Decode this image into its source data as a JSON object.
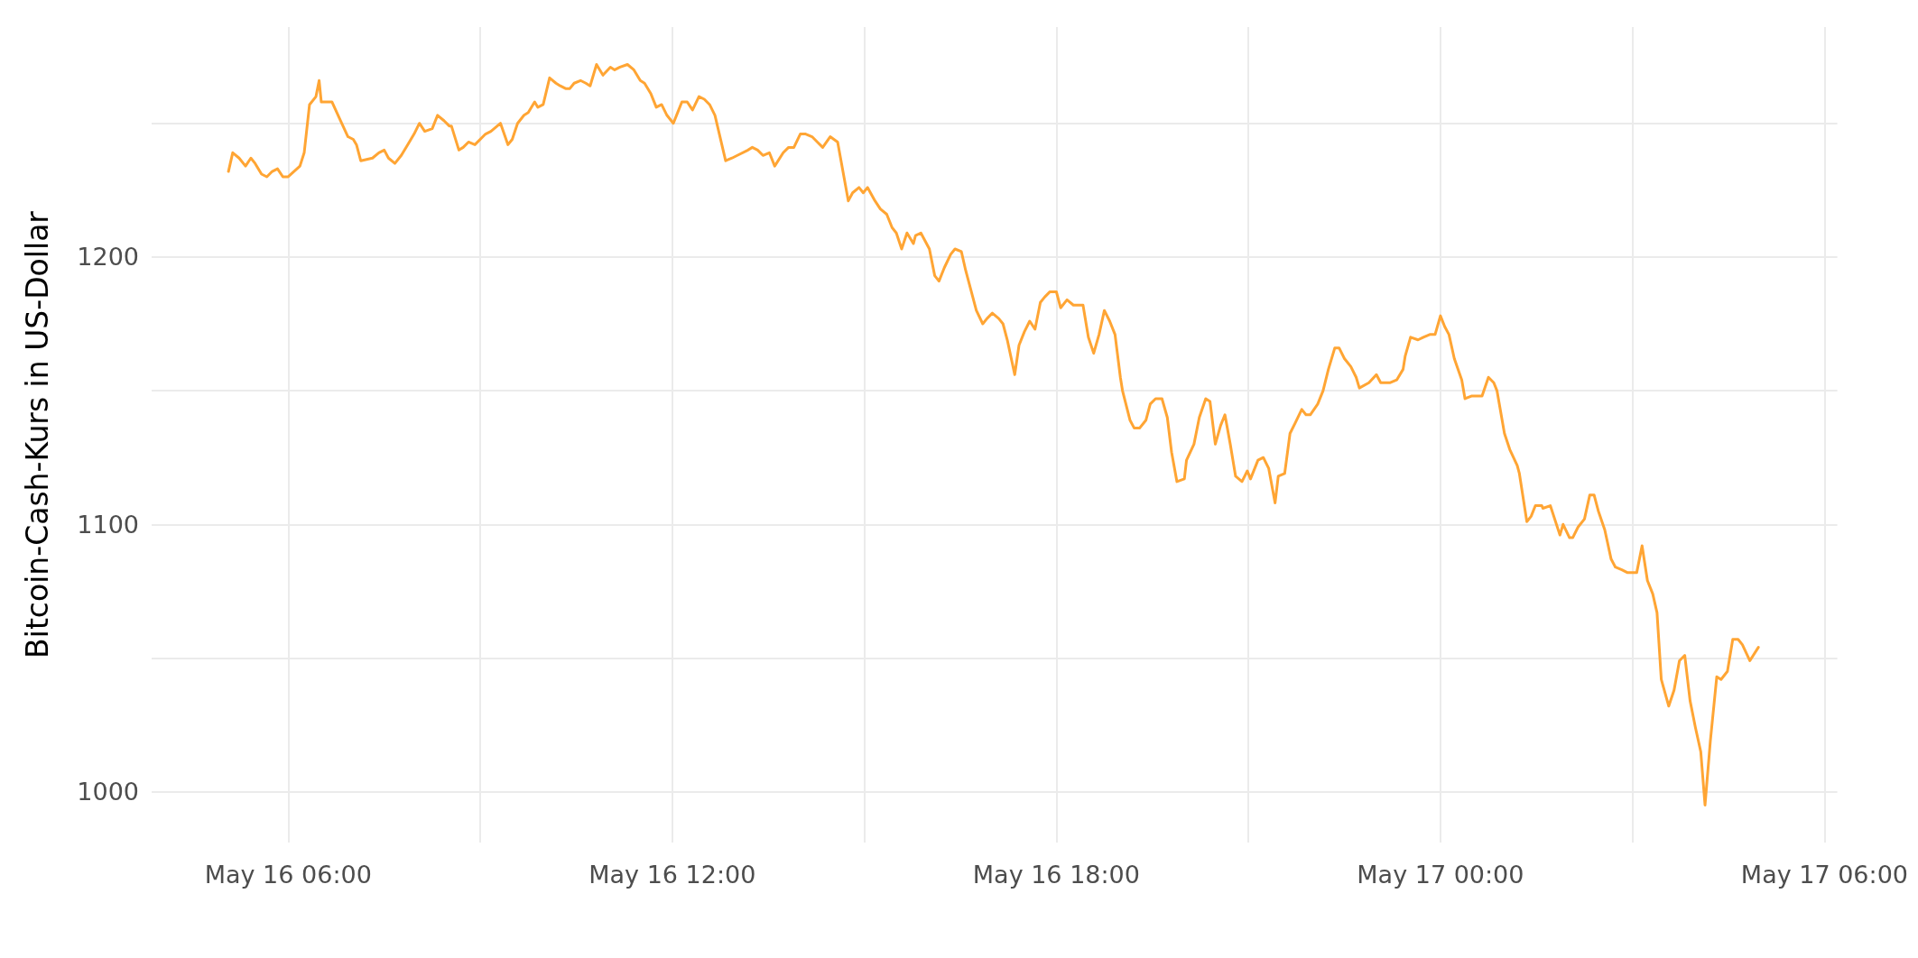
{
  "chart_data": {
    "type": "line",
    "ylabel": "Bitcoin-Cash-Kurs in US-Dollar",
    "xlim": [
      "--05-16T03:52",
      "--05-17T06:12"
    ],
    "ylim": [
      981,
      1286
    ],
    "xticks": [
      {
        "value": "--05-16T06:00",
        "label": "May 16 06:00"
      },
      {
        "value": "--05-16T09:00",
        "label": null
      },
      {
        "value": "--05-16T12:00",
        "label": "May 16 12:00"
      },
      {
        "value": "--05-16T15:00",
        "label": null
      },
      {
        "value": "--05-16T18:00",
        "label": "May 16 18:00"
      },
      {
        "value": "--05-16T21:00",
        "label": null
      },
      {
        "value": "--05-17T00:00",
        "label": "May 17 00:00"
      },
      {
        "value": "--05-17T03:00",
        "label": null
      },
      {
        "value": "--05-17T06:00",
        "label": "May 17 06:00"
      }
    ],
    "yticks": [
      1000,
      {
        "value": 1050,
        "label": null
      },
      1100,
      {
        "value": 1150,
        "label": null
      },
      1200,
      {
        "value": 1250,
        "label": null
      }
    ],
    "grid": true,
    "marker": "none",
    "line_style": "solid",
    "series": [
      {
        "color": "#ffa534",
        "x": [
          "--05-16T05:04",
          "--05-16T05:08",
          "--05-16T05:14",
          "--05-16T05:20",
          "--05-16T05:25",
          "--05-16T05:29",
          "--05-16T05:35",
          "--05-16T05:40",
          "--05-16T05:45",
          "--05-16T05:50",
          "--05-16T05:55",
          "--05-16T06:00",
          "--05-16T06:11",
          "--05-16T06:15",
          "--05-16T06:20",
          "--05-16T06:26",
          "--05-16T06:29",
          "--05-16T06:31",
          "--05-16T06:41",
          "--05-16T06:49",
          "--05-16T06:56",
          "--05-16T07:01",
          "--05-16T07:04",
          "--05-16T07:08",
          "--05-16T07:19",
          "--05-16T07:25",
          "--05-16T07:30",
          "--05-16T07:34",
          "--05-16T07:40",
          "--05-16T07:46",
          "--05-16T07:52",
          "--05-16T07:58",
          "--05-16T08:03",
          "--05-16T08:08",
          "--05-16T08:15",
          "--05-16T08:20",
          "--05-16T08:26",
          "--05-16T08:31",
          "--05-16T08:33",
          "--05-16T08:40",
          "--05-16T08:44",
          "--05-16T08:49",
          "--05-16T08:55",
          "--05-16T09:05",
          "--05-16T09:10",
          "--05-16T09:13",
          "--05-16T09:19",
          "--05-16T09:26",
          "--05-16T09:30",
          "--05-16T09:35",
          "--05-16T09:41",
          "--05-16T09:45",
          "--05-16T09:51",
          "--05-16T09:54",
          "--05-16T09:59",
          "--05-16T10:05",
          "--05-16T10:11",
          "--05-16T10:15",
          "--05-16T10:20",
          "--05-16T10:24",
          "--05-16T10:28",
          "--05-16T10:34",
          "--05-16T10:39",
          "--05-16T10:43",
          "--05-16T10:49",
          "--05-16T10:55",
          "--05-16T11:02",
          "--05-16T11:06",
          "--05-16T11:11",
          "--05-16T11:18",
          "--05-16T11:24",
          "--05-16T11:30",
          "--05-16T11:34",
          "--05-16T11:40",
          "--05-16T11:45",
          "--05-16T11:50",
          "--05-16T11:55",
          "--05-16T12:01",
          "--05-16T12:05",
          "--05-16T12:09",
          "--05-16T12:14",
          "--05-16T12:19",
          "--05-16T12:25",
          "--05-16T12:30",
          "--05-16T12:35",
          "--05-16T12:40",
          "--05-16T12:50",
          "--05-16T12:56",
          "--05-16T13:01",
          "--05-16T13:11",
          "--05-16T13:15",
          "--05-16T13:20",
          "--05-16T13:25",
          "--05-16T13:31",
          "--05-16T13:36",
          "--05-16T13:44",
          "--05-16T13:49",
          "--05-16T13:54",
          "--05-16T14:00",
          "--05-16T14:05",
          "--05-16T14:11",
          "--05-16T14:16",
          "--05-16T14:21",
          "--05-16T14:28",
          "--05-16T14:35",
          "--05-16T14:45",
          "--05-16T14:49",
          "--05-16T14:55",
          "--05-16T14:59",
          "--05-16T15:03",
          "--05-16T15:10",
          "--05-16T15:15",
          "--05-16T15:21",
          "--05-16T15:26",
          "--05-16T15:30",
          "--05-16T15:35",
          "--05-16T15:40",
          "--05-16T15:46",
          "--05-16T15:48",
          "--05-16T15:53",
          "--05-16T16:01",
          "--05-16T16:06",
          "--05-16T16:10",
          "--05-16T16:15",
          "--05-16T16:21",
          "--05-16T16:25",
          "--05-16T16:31",
          "--05-16T16:35",
          "--05-16T16:45",
          "--05-16T16:51",
          "--05-16T16:55",
          "--05-16T17:00",
          "--05-16T17:06",
          "--05-16T17:10",
          "--05-16T17:14",
          "--05-16T17:21",
          "--05-16T17:25",
          "--05-16T17:30",
          "--05-16T17:35",
          "--05-16T17:40",
          "--05-16T17:45",
          "--05-16T17:49",
          "--05-16T17:54",
          "--05-16T18:00",
          "--05-16T18:04",
          "--05-16T18:10",
          "--05-16T18:16",
          "--05-16T18:21",
          "--05-16T18:25",
          "--05-16T18:30",
          "--05-16T18:35",
          "--05-16T18:40",
          "--05-16T18:45",
          "--05-16T18:50",
          "--05-16T18:55",
          "--05-16T19:00",
          "--05-16T19:02",
          "--05-16T19:09",
          "--05-16T19:13",
          "--05-16T19:18",
          "--05-16T19:24",
          "--05-16T19:28",
          "--05-16T19:33",
          "--05-16T19:39",
          "--05-16T19:44",
          "--05-16T19:48",
          "--05-16T19:53",
          "--05-16T20:00",
          "--05-16T20:02",
          "--05-16T20:09",
          "--05-16T20:14",
          "--05-16T20:20",
          "--05-16T20:24",
          "--05-16T20:29",
          "--05-16T20:34",
          "--05-16T20:38",
          "--05-16T20:43",
          "--05-16T20:48",
          "--05-16T20:54",
          "--05-16T20:59",
          "--05-16T21:02",
          "--05-16T21:09",
          "--05-16T21:14",
          "--05-16T21:19",
          "--05-16T21:25",
          "--05-16T21:28",
          "--05-16T21:34",
          "--05-16T21:39",
          "--05-16T21:44",
          "--05-16T21:50",
          "--05-16T21:54",
          "--05-16T21:58",
          "--05-16T22:05",
          "--05-16T22:10",
          "--05-16T22:15",
          "--05-16T22:21",
          "--05-16T22:25",
          "--05-16T22:30",
          "--05-16T22:36",
          "--05-16T22:41",
          "--05-16T22:44",
          "--05-16T22:53",
          "--05-16T23:00",
          "--05-16T23:04",
          "--05-16T23:13",
          "--05-16T23:19",
          "--05-16T23:25",
          "--05-16T23:27",
          "--05-16T23:32",
          "--05-16T23:39",
          "--05-16T23:44",
          "--05-16T23:50",
          "--05-16T23:55",
          "--05-17T00:00",
          "--05-17T00:04",
          "--05-17T00:08",
          "--05-17T00:13",
          "--05-17T00:20",
          "--05-17T00:23",
          "--05-17T00:29",
          "--05-17T00:39",
          "--05-17T00:45",
          "--05-17T00:50",
          "--05-17T00:53",
          "--05-17T01:00",
          "--05-17T01:05",
          "--05-17T01:12",
          "--05-17T01:14",
          "--05-17T01:21",
          "--05-17T01:25",
          "--05-17T01:29",
          "--05-17T01:35",
          "--05-17T01:36",
          "--05-17T01:43",
          "--05-17T01:52",
          "--05-17T01:55",
          "--05-17T02:01",
          "--05-17T02:04",
          "--05-17T02:09",
          "--05-17T02:15",
          "--05-17T02:20",
          "--05-17T02:24",
          "--05-17T02:28",
          "--05-17T02:34",
          "--05-17T02:40",
          "--05-17T02:44",
          "--05-17T02:50",
          "--05-17T02:55",
          "--05-17T03:04",
          "--05-17T03:09",
          "--05-17T03:14",
          "--05-17T03:19",
          "--05-17T03:23",
          "--05-17T03:27",
          "--05-17T03:34",
          "--05-17T03:39",
          "--05-17T03:44",
          "--05-17T03:49",
          "--05-17T03:54",
          "--05-17T03:59",
          "--05-17T04:04",
          "--05-17T04:08",
          "--05-17T04:13",
          "--05-17T04:19",
          "--05-17T04:23",
          "--05-17T04:29",
          "--05-17T04:34",
          "--05-17T04:39",
          "--05-17T04:43",
          "--05-17T04:50",
          "--05-17T04:58"
        ],
        "values": [
          1232,
          1239,
          1237,
          1234,
          1237,
          1235,
          1231,
          1230,
          1232,
          1233,
          1230,
          1230,
          1234,
          1239,
          1257,
          1260,
          1266,
          1258,
          1258,
          1251,
          1245,
          1244,
          1242,
          1236,
          1237,
          1239,
          1240,
          1237,
          1235,
          1238,
          1242,
          1246,
          1250,
          1247,
          1248,
          1253,
          1251,
          1249,
          1249,
          1240,
          1241,
          1243,
          1242,
          1246,
          1247,
          1248,
          1250,
          1242,
          1244,
          1250,
          1253,
          1254,
          1258,
          1256,
          1257,
          1267,
          1265,
          1264,
          1263,
          1263,
          1265,
          1266,
          1265,
          1264,
          1272,
          1268,
          1271,
          1270,
          1271,
          1272,
          1270,
          1266,
          1265,
          1261,
          1256,
          1257,
          1253,
          1250,
          1254,
          1258,
          1258,
          1255,
          1260,
          1259,
          1257,
          1253,
          1236,
          1237,
          1238,
          1240,
          1241,
          1240,
          1238,
          1239,
          1234,
          1239,
          1241,
          1241,
          1246,
          1246,
          1245,
          1243,
          1241,
          1245,
          1243,
          1221,
          1224,
          1226,
          1224,
          1226,
          1221,
          1218,
          1216,
          1211,
          1209,
          1203,
          1209,
          1205,
          1208,
          1209,
          1203,
          1193,
          1191,
          1196,
          1201,
          1203,
          1202,
          1195,
          1180,
          1175,
          1177,
          1179,
          1177,
          1175,
          1169,
          1156,
          1167,
          1172,
          1176,
          1173,
          1183,
          1185,
          1187,
          1187,
          1181,
          1184,
          1182,
          1182,
          1182,
          1170,
          1164,
          1171,
          1180,
          1176,
          1171,
          1155,
          1150,
          1139,
          1136,
          1136,
          1139,
          1145,
          1147,
          1147,
          1140,
          1127,
          1116,
          1117,
          1124,
          1130,
          1140,
          1147,
          1146,
          1130,
          1137,
          1141,
          1130,
          1118,
          1116,
          1120,
          1117,
          1124,
          1125,
          1121,
          1108,
          1118,
          1119,
          1134,
          1138,
          1143,
          1141,
          1141,
          1145,
          1150,
          1158,
          1166,
          1166,
          1162,
          1159,
          1155,
          1151,
          1153,
          1156,
          1153,
          1153,
          1154,
          1158,
          1163,
          1170,
          1169,
          1170,
          1171,
          1171,
          1178,
          1174,
          1171,
          1162,
          1154,
          1147,
          1148,
          1148,
          1155,
          1153,
          1150,
          1134,
          1128,
          1122,
          1119,
          1101,
          1103,
          1107,
          1107,
          1106,
          1107,
          1096,
          1100,
          1095,
          1095,
          1099,
          1102,
          1111,
          1111,
          1105,
          1098,
          1087,
          1084,
          1083,
          1082,
          1082,
          1092,
          1079,
          1074,
          1067,
          1042,
          1032,
          1038,
          1049,
          1051,
          1034,
          1024,
          1015,
          995,
          1019,
          1043,
          1042,
          1045,
          1057,
          1057,
          1055,
          1049,
          1054
        ]
      }
    ]
  }
}
